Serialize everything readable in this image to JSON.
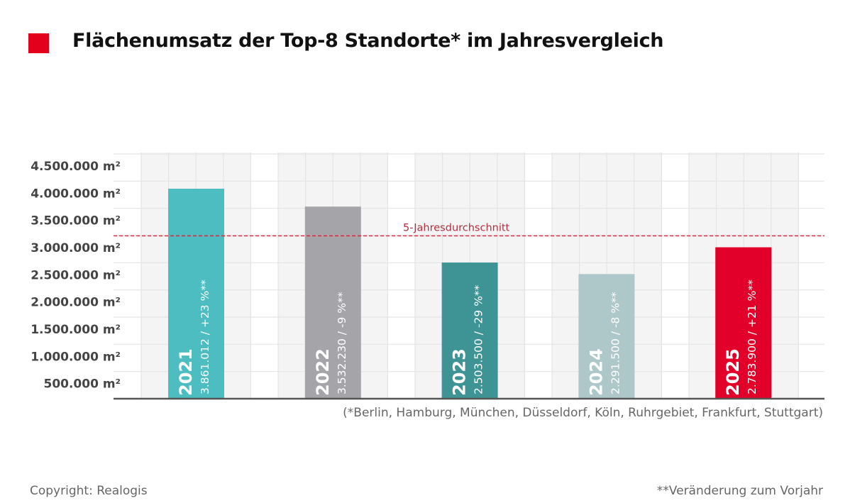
{
  "header": {
    "title": "Flächenumsatz der Top-8 Standorte* im Jahresvergleich",
    "accent_color": "#e3001b"
  },
  "chart_data": {
    "type": "bar",
    "title": "Flächenumsatz der Top-8 Standorte* im Jahresvergleich",
    "categories": [
      "2021",
      "2022",
      "2023",
      "2024",
      "2025"
    ],
    "values": [
      3861012,
      3532230,
      2503500,
      2291500,
      2783900
    ],
    "value_labels": [
      "3.861.012 / +23 %**",
      "3.532.230 / -9 %**",
      "2.503.500 / -29 %**",
      "2.291.500 / -8 %**",
      "2.783.900 / +21 %**"
    ],
    "colors": [
      "#4dbdc1",
      "#a4a4a9",
      "#3e9494",
      "#aec8c9",
      "#e2002a"
    ],
    "yticks": [
      500000,
      1000000,
      1500000,
      2000000,
      2500000,
      3000000,
      3500000,
      4000000,
      4500000
    ],
    "ytick_labels": [
      "500.000 m²",
      "1.000.000 m²",
      "1.500.000 m²",
      "2.000.000 m²",
      "2.500.000 m²",
      "3.000.000 m²",
      "3.500.000 m²",
      "4.000.000 m²",
      "4.500.000 m²"
    ],
    "ylim": [
      0,
      4500000
    ],
    "grid": true,
    "reference_line": {
      "label": "5-Jahresdurchschnitt",
      "value": 2994422,
      "color": "#d0243a"
    },
    "xlabel": "",
    "ylabel": ""
  },
  "notes": {
    "locations": "(*Berlin, Hamburg, München, Düsseldorf, Köln, Ruhrgebiet, Frankfurt, Stuttgart)",
    "copyright": "Copyright: Realogis",
    "change": "**Veränderung zum Vorjahr"
  }
}
